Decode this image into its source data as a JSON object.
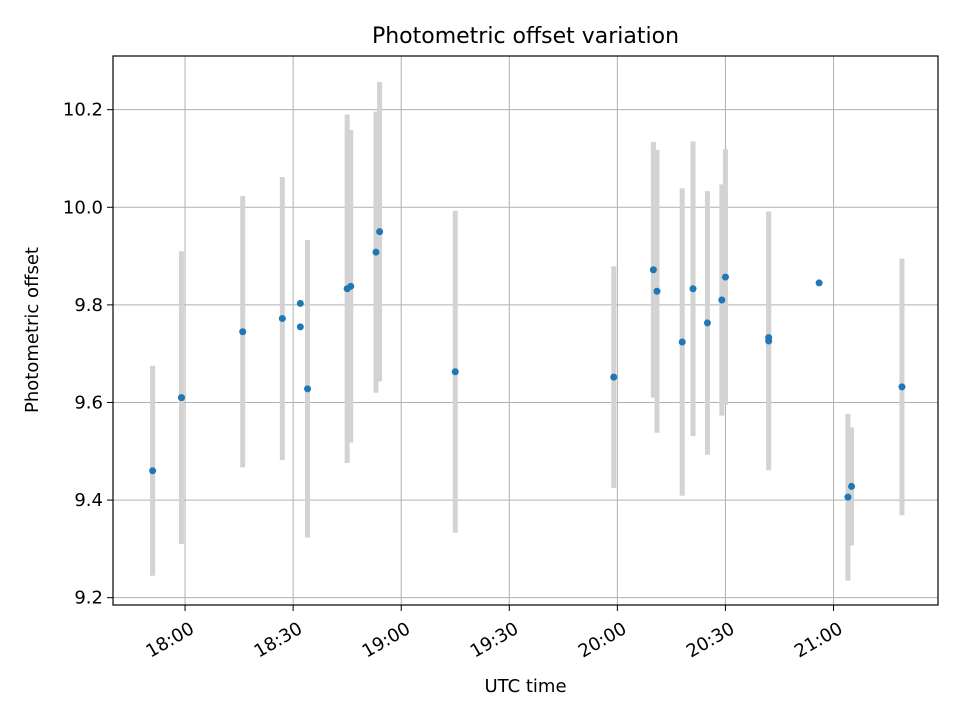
{
  "chart_data": {
    "type": "scatter",
    "title": "Photometric offset variation",
    "xlabel": "UTC time",
    "ylabel": "Photometric offset",
    "xlim": [
      "17:40",
      "21:29"
    ],
    "ylim": [
      9.185,
      10.31
    ],
    "grid": true,
    "x_ticks": [
      "18:00",
      "18:30",
      "19:00",
      "19:30",
      "20:00",
      "20:30",
      "21:00"
    ],
    "y_ticks": [
      "9.2",
      "9.4",
      "9.6",
      "9.8",
      "10.0",
      "10.2"
    ],
    "colors": {
      "marker": "#1f77b4",
      "errorbar": "#d3d3d3",
      "grid": "#b0b0b0"
    },
    "points": [
      {
        "x": "17:51",
        "y": 9.46,
        "err": 0.215
      },
      {
        "x": "17:59",
        "y": 9.61,
        "err": 0.3
      },
      {
        "x": "18:16",
        "y": 9.745,
        "err": 0.278
      },
      {
        "x": "18:27",
        "y": 9.772,
        "err": 0.29
      },
      {
        "x": "18:32",
        "y": 9.803,
        "err": 0.0
      },
      {
        "x": "18:32",
        "y": 9.755,
        "err": 0.0
      },
      {
        "x": "18:34",
        "y": 9.628,
        "err": 0.305
      },
      {
        "x": "18:45",
        "y": 9.833,
        "err": 0.357
      },
      {
        "x": "18:46",
        "y": 9.838,
        "err": 0.32
      },
      {
        "x": "18:53",
        "y": 9.908,
        "err": 0.288
      },
      {
        "x": "18:54",
        "y": 9.95,
        "err": 0.307
      },
      {
        "x": "19:15",
        "y": 9.663,
        "err": 0.33
      },
      {
        "x": "19:59",
        "y": 9.652,
        "err": 0.227
      },
      {
        "x": "20:10",
        "y": 9.872,
        "err": 0.262
      },
      {
        "x": "20:11",
        "y": 9.828,
        "err": 0.29
      },
      {
        "x": "20:18",
        "y": 9.724,
        "err": 0.315
      },
      {
        "x": "20:21",
        "y": 9.833,
        "err": 0.302
      },
      {
        "x": "20:25",
        "y": 9.763,
        "err": 0.27
      },
      {
        "x": "20:29",
        "y": 9.81,
        "err": 0.237
      },
      {
        "x": "20:30",
        "y": 9.857,
        "err": 0.262
      },
      {
        "x": "20:42",
        "y": 9.733,
        "err": 0.258
      },
      {
        "x": "20:42",
        "y": 9.726,
        "err": 0.265
      },
      {
        "x": "20:56",
        "y": 9.845,
        "err": 0.0
      },
      {
        "x": "21:04",
        "y": 9.406,
        "err": 0.171
      },
      {
        "x": "21:05",
        "y": 9.428,
        "err": 0.121
      },
      {
        "x": "21:19",
        "y": 9.632,
        "err": 0.263
      }
    ]
  }
}
